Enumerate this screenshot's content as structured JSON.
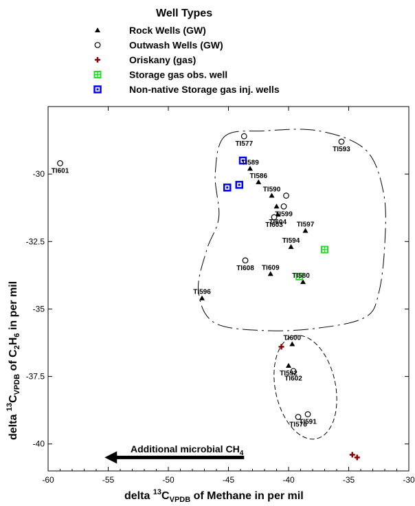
{
  "chart_data": {
    "type": "scatter",
    "xlabel": {
      "pre": "delta ",
      "sup": "13",
      "mid": "C",
      "sub": "VPDB",
      "post": " of Methane  in per mil"
    },
    "ylabel": {
      "pre": "delta ",
      "sup": "13",
      "mid": "C",
      "sub": "VPDB",
      "post": " of C",
      "sub2": "2",
      "mid2": "H",
      "sub3": "6",
      "post2": " in per mil"
    },
    "xlim": [
      -60,
      -30
    ],
    "ylim": [
      -41,
      -27.5
    ],
    "xticks": [
      -60,
      -55,
      -50,
      -45,
      -40,
      -35,
      -30
    ],
    "yticks": [
      -30,
      -32.5,
      -35,
      -37.5,
      -40
    ],
    "ytick_labels": [
      "-30",
      "-32.5",
      "-35",
      "-37.5",
      "-40"
    ],
    "legend": {
      "title": "Well Types",
      "entries": [
        {
          "marker": "triangle",
          "label": "Rock Wells (GW)"
        },
        {
          "marker": "circle",
          "label": "Outwash Wells (GW)"
        },
        {
          "marker": "plus",
          "label": "Oriskany  (gas)"
        },
        {
          "marker": "green-square",
          "label": "Storage gas obs. well"
        },
        {
          "marker": "blue-square",
          "label": "Non-native Storage gas inj. wells"
        }
      ]
    },
    "colors": {
      "oriskany": "#8b0000",
      "storage_obs": "#22dd22",
      "storage_inj": "#0000ff",
      "ink": "#000000"
    },
    "series": [
      {
        "name": "Rock Wells (GW)",
        "marker": "triangle",
        "points": [
          {
            "x": -43.2,
            "y": -29.8,
            "label": "TI589"
          },
          {
            "x": -42.5,
            "y": -30.3,
            "label": "TI586"
          },
          {
            "x": -41.4,
            "y": -30.8,
            "label": "TI590"
          },
          {
            "x": -41.0,
            "y": -31.2,
            "label": ""
          },
          {
            "x": -40.9,
            "y": -31.5,
            "label": "TI604"
          },
          {
            "x": -38.6,
            "y": -32.1,
            "label": "TI597"
          },
          {
            "x": -39.8,
            "y": -32.7,
            "label": "TI594"
          },
          {
            "x": -41.5,
            "y": -33.7,
            "label": "TI609"
          },
          {
            "x": -38.8,
            "y": -34.0,
            "label": ""
          },
          {
            "x": -47.2,
            "y": -34.6,
            "label": "TI596"
          },
          {
            "x": -39.7,
            "y": -36.3,
            "label": "TI600"
          },
          {
            "x": -40.0,
            "y": -37.1,
            "label": "TI592"
          }
        ]
      },
      {
        "name": "Outwash Wells (GW)",
        "marker": "circle",
        "points": [
          {
            "x": -59.0,
            "y": -29.6,
            "label": "TI601"
          },
          {
            "x": -43.7,
            "y": -28.6,
            "label": "TI577"
          },
          {
            "x": -35.6,
            "y": -28.8,
            "label": "TI593"
          },
          {
            "x": -40.2,
            "y": -30.8,
            "label": ""
          },
          {
            "x": -40.4,
            "y": -31.2,
            "label": "TI599"
          },
          {
            "x": -41.2,
            "y": -31.6,
            "label": "TI603"
          },
          {
            "x": -43.6,
            "y": -33.2,
            "label": "TI608"
          },
          {
            "x": -39.6,
            "y": -37.3,
            "label": "TI602"
          },
          {
            "x": -39.2,
            "y": -39.0,
            "label": "TI576"
          },
          {
            "x": -38.4,
            "y": -38.9,
            "label": "TI591"
          }
        ]
      },
      {
        "name": "Oriskany  (gas)",
        "marker": "plus",
        "points": [
          {
            "x": -40.6,
            "y": -36.4
          },
          {
            "x": -34.7,
            "y": -40.4
          },
          {
            "x": -34.3,
            "y": -40.5
          }
        ]
      },
      {
        "name": "Storage gas obs. well",
        "marker": "green-square",
        "points": [
          {
            "x": -37.0,
            "y": -32.8
          },
          {
            "x": -39.1,
            "y": -33.8
          }
        ]
      },
      {
        "name": "Non-native Storage gas inj. wells",
        "marker": "blue-square",
        "points": [
          {
            "x": -43.8,
            "y": -29.5
          },
          {
            "x": -45.1,
            "y": -30.5
          },
          {
            "x": -44.1,
            "y": -30.4
          }
        ]
      }
    ],
    "extra_labels": [
      {
        "text": "TI580",
        "x": -38.8,
        "y": -34.0
      }
    ],
    "annotation": {
      "pre": "Additional microbial CH",
      "sub": "4",
      "arrow_from": [
        -43.7,
        -40.5
      ],
      "arrow_to": [
        -55.3,
        -40.5
      ]
    },
    "regions": {
      "upper_boundary": [
        [
          -45.3,
          -28.6
        ],
        [
          -42.0,
          -28.4
        ],
        [
          -37.5,
          -28.4
        ],
        [
          -33.6,
          -29.1
        ],
        [
          -32.1,
          -30.7
        ],
        [
          -32.0,
          -32.6
        ],
        [
          -32.5,
          -34.4
        ],
        [
          -33.6,
          -35.3
        ],
        [
          -37.4,
          -35.7
        ],
        [
          -42.0,
          -35.8
        ],
        [
          -46.2,
          -35.5
        ],
        [
          -47.5,
          -34.3
        ],
        [
          -46.8,
          -32.8
        ],
        [
          -45.8,
          -31.6
        ],
        [
          -46.1,
          -30.0
        ]
      ],
      "lower_ellipse": {
        "cx": -38.6,
        "cy": -37.9,
        "rx": 2.5,
        "ry": 1.95,
        "rotate": -12
      }
    }
  }
}
